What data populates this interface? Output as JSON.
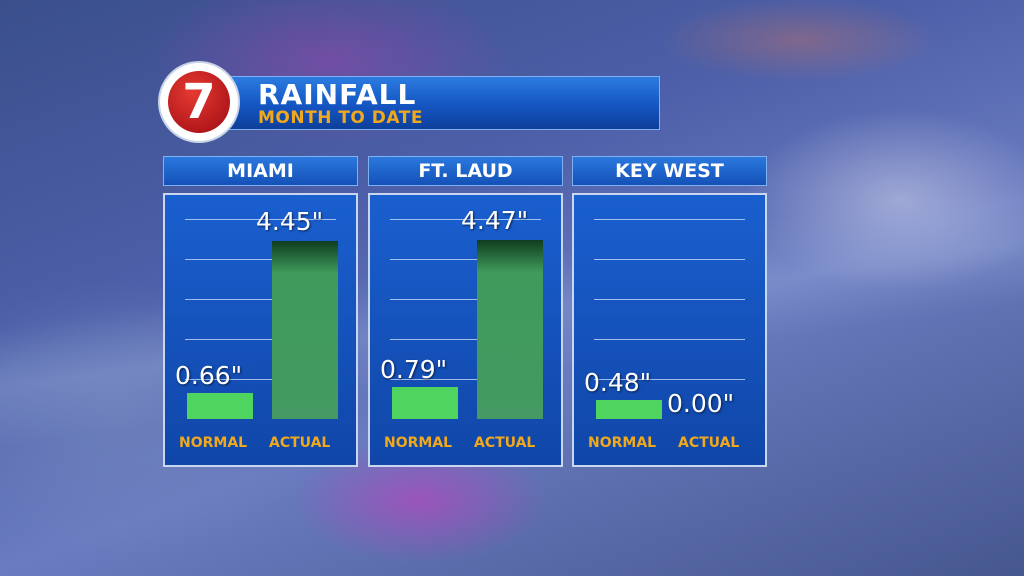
{
  "header": {
    "logo_text": "7",
    "title": "RAINFALL",
    "subtitle": "MONTH TO DATE"
  },
  "colors": {
    "normal_bar": "#4fd45f",
    "actual_bar": "#449a62",
    "panel": "#1a5fcf",
    "category_label": "#f0a81c"
  },
  "chart_data": [
    {
      "type": "bar",
      "title": "MIAMI",
      "categories": [
        "NORMAL",
        "ACTUAL"
      ],
      "values": [
        0.66,
        4.45
      ],
      "value_labels": [
        "0.66\"",
        "4.45\""
      ],
      "ylim": [
        0,
        5
      ],
      "grid": true
    },
    {
      "type": "bar",
      "title": "FT. LAUD",
      "categories": [
        "NORMAL",
        "ACTUAL"
      ],
      "values": [
        0.79,
        4.47
      ],
      "value_labels": [
        "0.79\"",
        "4.47\""
      ],
      "ylim": [
        0,
        5
      ],
      "grid": true
    },
    {
      "type": "bar",
      "title": "KEY WEST",
      "categories": [
        "NORMAL",
        "ACTUAL"
      ],
      "values": [
        0.48,
        0.0
      ],
      "value_labels": [
        "0.48\"",
        "0.00\""
      ],
      "ylim": [
        0,
        5
      ],
      "grid": true
    }
  ]
}
